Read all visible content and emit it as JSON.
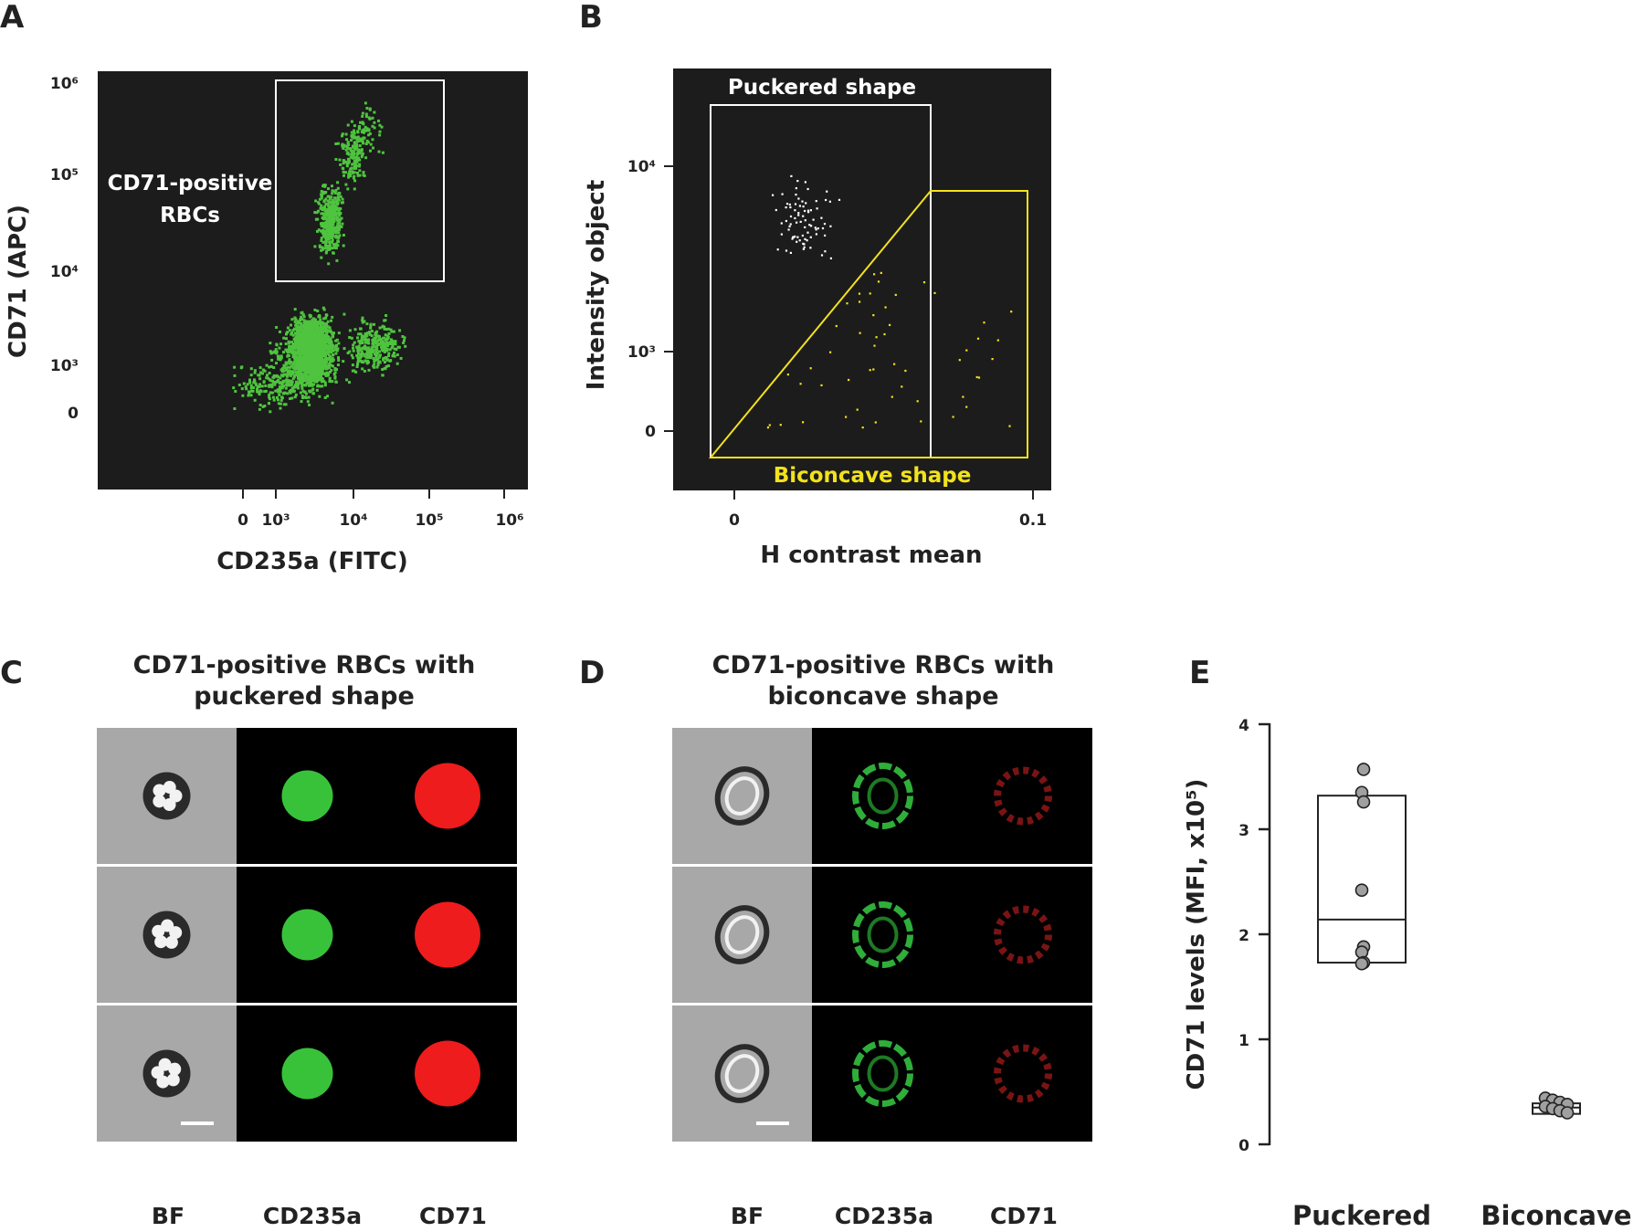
{
  "panel_letters": [
    "A",
    "B",
    "C",
    "D",
    "E"
  ],
  "panel_a": {
    "x_label": "CD235a (FITC)",
    "y_label": "CD71 (APC)",
    "x_ticks": [
      "0",
      "10³",
      "10⁴",
      "10⁵",
      "10⁶"
    ],
    "y_ticks": [
      "10⁶",
      "10⁵",
      "10⁴",
      "10³",
      "0"
    ],
    "gate_label_line1": "CD71-positive",
    "gate_label_line2": "RBCs",
    "dot_color": "#4fc43f",
    "gate_color": "#ffffff",
    "background": "#1c1c1c"
  },
  "panel_b": {
    "x_label": "H contrast mean",
    "y_label": "Intensity object",
    "x_ticks": [
      "0",
      "0.1"
    ],
    "y_ticks": [
      "10⁴",
      "10³",
      "0"
    ],
    "gate_puckered_label": "Puckered shape",
    "gate_biconcave_label": "Biconcave shape",
    "puckered_color": "#ffffff",
    "biconcave_color": "#f2e21c",
    "background": "#1c1c1c"
  },
  "panel_c": {
    "title_line1": "CD71-positive RBCs with",
    "title_line2": "puckered shape",
    "columns": [
      "BF",
      "CD235a",
      "CD71"
    ]
  },
  "panel_d": {
    "title_line1": "CD71-positive RBCs with",
    "title_line2": "biconcave shape",
    "columns": [
      "BF",
      "CD235a",
      "CD71"
    ]
  },
  "panel_e": {
    "y_label": "CD71 levels (MFI, x10⁵)",
    "y_ticks": [
      "4",
      "3",
      "2",
      "1",
      "0"
    ]
  },
  "chart_data": {
    "type": "box",
    "ylabel": "CD71 levels (MFI, x10⁵)",
    "ylim": [
      0,
      4
    ],
    "categories": [
      "Puckered",
      "Biconcave"
    ],
    "series": [
      {
        "values": [
          3.57,
          3.35,
          3.26,
          2.42,
          1.88,
          1.83,
          1.73,
          1.72
        ],
        "box": {
          "q1": 1.73,
          "median": 2.14,
          "q3": 3.32
        }
      },
      {
        "values": [
          0.44,
          0.42,
          0.4,
          0.38,
          0.36,
          0.34,
          0.32,
          0.3
        ],
        "box": {
          "q1": 0.29,
          "median": 0.35,
          "q3": 0.39
        }
      }
    ]
  }
}
